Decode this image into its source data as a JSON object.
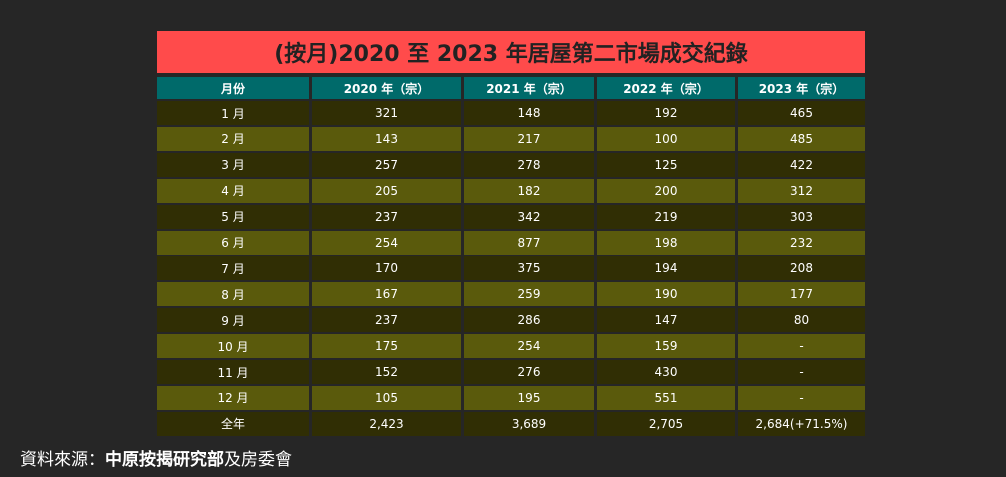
{
  "title": "(按月)2020 至 2023 年居屋第二市場成交紀錄",
  "table": {
    "header": [
      "月份",
      "2020 年（宗）",
      "2021 年（宗）",
      "2022 年（宗）",
      "2023 年（宗）"
    ],
    "rows": [
      [
        "1 月",
        "321",
        "148",
        "192",
        "465"
      ],
      [
        "2 月",
        "143",
        "217",
        "100",
        "485"
      ],
      [
        "3 月",
        "257",
        "278",
        "125",
        "422"
      ],
      [
        "4 月",
        "205",
        "182",
        "200",
        "312"
      ],
      [
        "5 月",
        "237",
        "342",
        "219",
        "303"
      ],
      [
        "6 月",
        "254",
        "877",
        "198",
        "232"
      ],
      [
        "7 月",
        "170",
        "375",
        "194",
        "208"
      ],
      [
        "8 月",
        "167",
        "259",
        "190",
        "177"
      ],
      [
        "9 月",
        "237",
        "286",
        "147",
        "80"
      ],
      [
        "10 月",
        "175",
        "254",
        "159",
        "-"
      ],
      [
        "11 月",
        "152",
        "276",
        "430",
        "-"
      ],
      [
        "12 月",
        "105",
        "195",
        "551",
        "-"
      ],
      [
        "全年",
        "2,423",
        "3,689",
        "2,705",
        "2,684(+71.5%)"
      ]
    ]
  },
  "source": {
    "label": "資料來源：",
    "primary": "中原按揭研究部",
    "secondary": "及房委會"
  }
}
